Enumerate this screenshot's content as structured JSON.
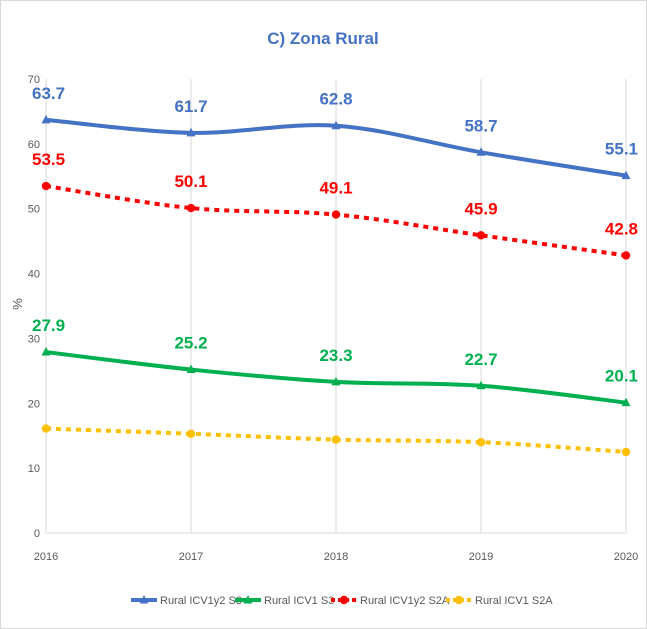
{
  "chart_data": {
    "type": "line",
    "title": "C) Zona Rural",
    "xlabel": "",
    "ylabel": "%",
    "x": [
      "2016",
      "2017",
      "2018",
      "2019",
      "2020"
    ],
    "ylim": [
      0,
      70
    ],
    "yticks": [
      0,
      10,
      20,
      30,
      40,
      50,
      60,
      70
    ],
    "grid": {
      "vertical": true,
      "horizontal": false
    },
    "legend_position": "bottom",
    "series": [
      {
        "name": "Rural ICV1y2 S3",
        "values": [
          63.7,
          61.7,
          62.8,
          58.7,
          55.1
        ],
        "labels": [
          "63.7",
          "61.7",
          "62.8",
          "58.7",
          "55.1"
        ],
        "color": "#4472c4",
        "style": "solid",
        "marker": "triangle"
      },
      {
        "name": "Rural ICV1 S3",
        "values": [
          27.9,
          25.2,
          23.3,
          22.7,
          20.1
        ],
        "labels": [
          "27.9",
          "25.2",
          "23.3",
          "22.7",
          "20.1"
        ],
        "color": "#00b050",
        "style": "solid",
        "marker": "triangle"
      },
      {
        "name": "Rural ICV1y2 S2A",
        "values": [
          53.5,
          50.1,
          49.1,
          45.9,
          42.8
        ],
        "labels": [
          "53.5",
          "50.1",
          "49.1",
          "45.9",
          "42.8"
        ],
        "color": "#ff0000",
        "style": "dashed",
        "marker": "circle"
      },
      {
        "name": "Rural ICV1 S2A",
        "values": [
          16.1,
          15.3,
          14.4,
          14.0,
          12.5
        ],
        "labels": [],
        "color": "#ffc000",
        "style": "dashed",
        "marker": "circle"
      }
    ]
  }
}
